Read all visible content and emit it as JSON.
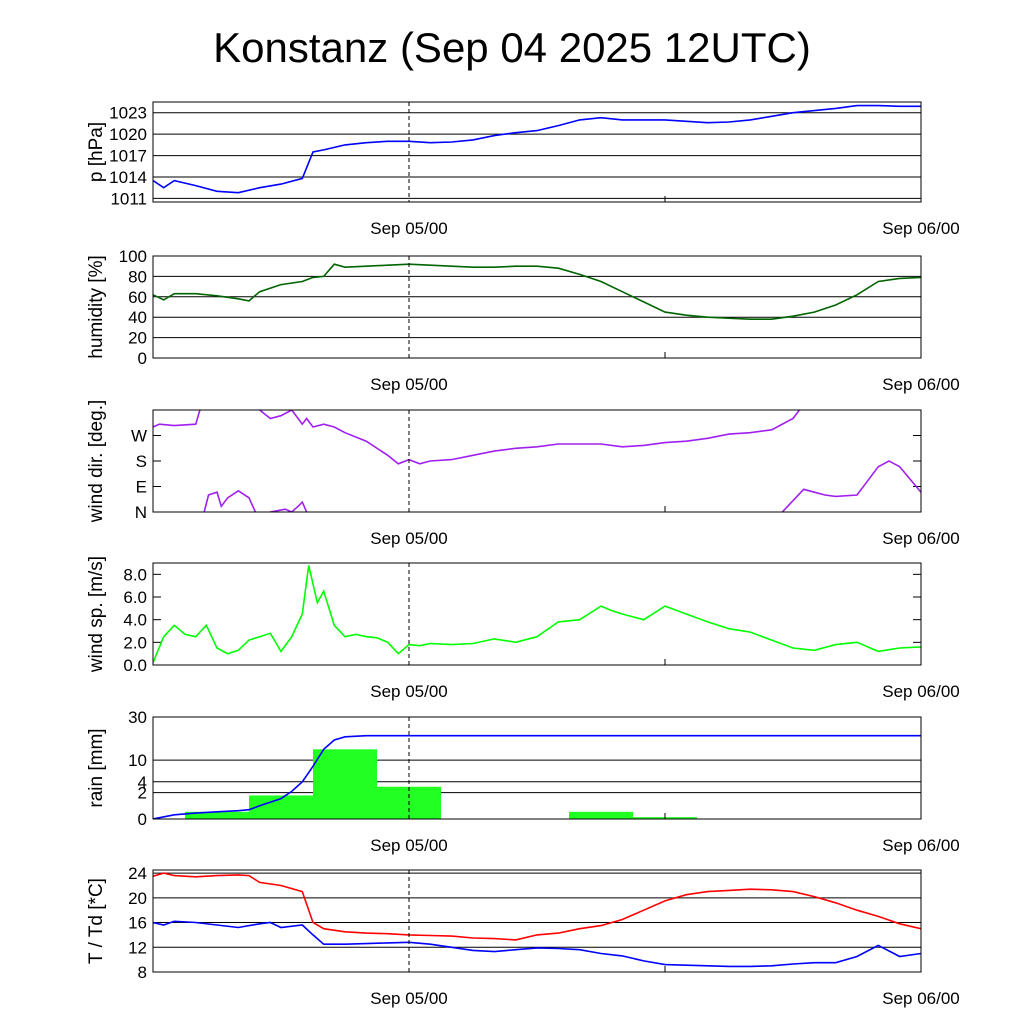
{
  "title": "Konstanz (Sep 04 2025 12UTC)",
  "x_ticks": [
    {
      "t": 12,
      "label": "Sep 05/00"
    },
    {
      "t": 36,
      "label": "Sep 06/00"
    }
  ],
  "x_minor_ticks": [
    24
  ],
  "colors": {
    "pressure": "#0000ff",
    "humidity": "#006400",
    "wind_dir": "#a020f0",
    "wind_speed": "#00ff00",
    "rain_sum": "#0000ff",
    "rain_bars": "#22ff22",
    "temperature": "#ff0000",
    "dewpoint": "#0000ff"
  },
  "chart_data": [
    {
      "type": "line",
      "name": "pressure",
      "ylabel": "p [hPa]",
      "xlim": [
        0,
        36
      ],
      "ylim": [
        1010.5,
        1024.5
      ],
      "yticks": [
        1011,
        1014,
        1017,
        1020,
        1023
      ],
      "grid": true,
      "series": [
        {
          "color": "#0000ff",
          "x": [
            0,
            0.5,
            1,
            2,
            3,
            4,
            5,
            6,
            7,
            7.5,
            8,
            9,
            10,
            11,
            12,
            13,
            14,
            15,
            16,
            17,
            18,
            19,
            20,
            21,
            22,
            23,
            24,
            25,
            26,
            27,
            28,
            29,
            30,
            31,
            32,
            33,
            34,
            35,
            36
          ],
          "y": [
            1013.5,
            1012.5,
            1013.5,
            1012.8,
            1012.0,
            1011.8,
            1012.5,
            1013.0,
            1013.8,
            1017.5,
            1017.8,
            1018.5,
            1018.8,
            1019.0,
            1019.0,
            1018.8,
            1018.9,
            1019.2,
            1019.8,
            1020.2,
            1020.5,
            1021.2,
            1022.0,
            1022.3,
            1022.0,
            1022.0,
            1022.0,
            1021.8,
            1021.6,
            1021.7,
            1022.0,
            1022.5,
            1023.0,
            1023.3,
            1023.6,
            1024.0,
            1024.0,
            1023.9,
            1023.9
          ]
        }
      ]
    },
    {
      "type": "line",
      "name": "humidity",
      "ylabel": "humidity [%]",
      "xlim": [
        0,
        36
      ],
      "ylim": [
        0,
        100
      ],
      "yticks": [
        0,
        20,
        40,
        60,
        80,
        100
      ],
      "grid": true,
      "series": [
        {
          "color": "#006400",
          "x": [
            0,
            0.5,
            1,
            2,
            3,
            4,
            4.5,
            5,
            6,
            7,
            7.5,
            8,
            8.5,
            9,
            10,
            11,
            12,
            13,
            14,
            15,
            16,
            17,
            18,
            19,
            20,
            21,
            22,
            23,
            24,
            25,
            26,
            27,
            28,
            29,
            30,
            31,
            32,
            33,
            34,
            35,
            36
          ],
          "y": [
            62,
            57,
            63,
            63,
            61,
            58,
            56,
            65,
            72,
            75,
            79,
            80,
            92,
            89,
            90,
            91,
            92,
            91,
            90,
            89,
            89,
            90,
            90,
            88,
            82,
            75,
            65,
            55,
            45,
            42,
            40,
            39,
            38,
            38,
            41,
            45,
            52,
            62,
            75,
            78,
            79
          ]
        }
      ]
    },
    {
      "type": "line",
      "name": "wind direction",
      "ylabel": "wind dir. [deg.]",
      "xlim": [
        0,
        36
      ],
      "ylim": [
        0,
        360
      ],
      "yticks": [
        0,
        90,
        180,
        270
      ],
      "yticklabels": [
        "N",
        "E",
        "S",
        "W"
      ],
      "grid": false,
      "series": [
        {
          "color": "#a020f0",
          "segments": [
            {
              "x": [
                0,
                0.3,
                1,
                2,
                2.2
              ],
              "y": [
                300,
                310,
                305,
                310,
                360
              ]
            },
            {
              "x": [
                5,
                5.5,
                6,
                6.5,
                6.8,
                7,
                7.2,
                7.5,
                8,
                8.5,
                9,
                10,
                11,
                11.5,
                12,
                12.5,
                13,
                14,
                15,
                16,
                17,
                18,
                19,
                20,
                21,
                22,
                23,
                24,
                25,
                26,
                27,
                28,
                29,
                30,
                30.3
              ],
              "y": [
                360,
                330,
                340,
                360,
                330,
                310,
                330,
                300,
                310,
                300,
                280,
                250,
                200,
                170,
                185,
                170,
                180,
                185,
                200,
                215,
                225,
                230,
                240,
                240,
                240,
                230,
                235,
                245,
                250,
                260,
                275,
                280,
                290,
                330,
                360
              ]
            }
          ]
        },
        {
          "color": "#a020f0",
          "segments": [
            {
              "x": [
                2.4,
                2.6,
                3,
                3.2,
                3.5,
                4,
                4.5,
                4.8
              ],
              "y": [
                0,
                60,
                70,
                20,
                50,
                75,
                50,
                0
              ]
            },
            {
              "x": [
                5.5,
                6.2,
                6.5,
                6.8,
                7,
                7.2
              ],
              "y": [
                0,
                10,
                0,
                20,
                35,
                0
              ]
            },
            {
              "x": [
                29.5,
                30.5,
                31,
                31.5,
                32,
                33,
                34,
                34.5,
                35,
                36
              ],
              "y": [
                0,
                80,
                70,
                60,
                55,
                60,
                160,
                180,
                160,
                70
              ]
            }
          ]
        }
      ]
    },
    {
      "type": "line",
      "name": "wind speed",
      "ylabel": "wind sp. [m/s]",
      "xlim": [
        0,
        36
      ],
      "ylim": [
        0,
        9
      ],
      "yticks": [
        0,
        2,
        4,
        6,
        8
      ],
      "yticklabels": [
        "0.0",
        "2.0",
        "4.0",
        "6.0",
        "8.0"
      ],
      "grid": false,
      "series": [
        {
          "color": "#00ff00",
          "x": [
            0,
            0.5,
            1,
            1.5,
            2,
            2.5,
            3,
            3.5,
            4,
            4.5,
            5,
            5.5,
            6,
            6.5,
            7,
            7.3,
            7.7,
            8,
            8.5,
            9,
            9.5,
            10,
            10.5,
            11,
            11.5,
            12,
            12.5,
            13,
            14,
            15,
            16,
            17,
            18,
            19,
            20,
            21,
            21.5,
            22,
            23,
            24,
            25,
            26,
            27,
            28,
            29,
            30,
            31,
            32,
            33,
            34,
            35,
            36
          ],
          "y": [
            0.2,
            2.5,
            3.5,
            2.7,
            2.5,
            3.5,
            1.5,
            1.0,
            1.3,
            2.2,
            2.5,
            2.8,
            1.2,
            2.5,
            4.5,
            8.8,
            5.5,
            6.5,
            3.5,
            2.5,
            2.7,
            2.5,
            2.4,
            2.0,
            1.0,
            1.8,
            1.7,
            1.9,
            1.8,
            1.9,
            2.3,
            2.0,
            2.5,
            3.8,
            4.0,
            5.2,
            4.8,
            4.5,
            4.0,
            5.2,
            4.5,
            3.8,
            3.2,
            2.9,
            2.2,
            1.5,
            1.3,
            1.8,
            2.0,
            1.2,
            1.5,
            1.6
          ]
        }
      ]
    },
    {
      "type": "bar+line",
      "name": "rain",
      "ylabel": "rain [mm]",
      "xlim": [
        0,
        36
      ],
      "yscale": "sqrt",
      "ylim": [
        0,
        30
      ],
      "yticks": [
        0,
        2,
        4,
        10,
        30
      ],
      "grid": true,
      "bars": {
        "color": "#22ff22",
        "x0": [
          1.5,
          4.5,
          7.5,
          10.5,
          19.5,
          22.5
        ],
        "x1": [
          4.5,
          7.5,
          10.5,
          13.5,
          22.5,
          25.5
        ],
        "values": [
          0.15,
          1.6,
          14.0,
          3.0,
          0.15,
          0.01
        ]
      },
      "series": [
        {
          "color": "#0000ff",
          "name": "rain sum",
          "x": [
            0,
            1,
            2,
            3,
            4,
            4.5,
            5,
            6,
            6.5,
            7,
            7.5,
            8,
            8.5,
            9,
            10,
            11,
            12,
            36
          ],
          "y": [
            0,
            0.05,
            0.1,
            0.15,
            0.2,
            0.25,
            0.5,
            1.2,
            2.2,
            4,
            8,
            14,
            18,
            19.5,
            20,
            20,
            20,
            20
          ]
        }
      ]
    },
    {
      "type": "line",
      "name": "temperature / dewpoint",
      "ylabel": "T / Td [*C]",
      "xlim": [
        0,
        36
      ],
      "ylim": [
        8,
        24.5
      ],
      "yticks": [
        8,
        12,
        16,
        20,
        24
      ],
      "grid": true,
      "series": [
        {
          "color": "#ff0000",
          "name": "T",
          "x": [
            0,
            0.5,
            1,
            2,
            3,
            4,
            4.5,
            5,
            6,
            7,
            7.5,
            8,
            9,
            10,
            11,
            12,
            13,
            14,
            15,
            16,
            17,
            18,
            19,
            20,
            21,
            22,
            23,
            24,
            25,
            26,
            27,
            28,
            29,
            30,
            31,
            32,
            33,
            34,
            35,
            36
          ],
          "y": [
            23.5,
            24.0,
            23.6,
            23.4,
            23.6,
            23.7,
            23.6,
            22.5,
            22.0,
            21.0,
            16.0,
            15.0,
            14.5,
            14.3,
            14.2,
            14.0,
            13.9,
            13.8,
            13.5,
            13.4,
            13.2,
            14.0,
            14.3,
            15.0,
            15.5,
            16.5,
            18.0,
            19.5,
            20.5,
            21.0,
            21.2,
            21.4,
            21.3,
            21.0,
            20.2,
            19.2,
            18.0,
            17.0,
            15.8,
            15.0
          ]
        },
        {
          "color": "#0000ff",
          "name": "Td",
          "x": [
            0,
            0.5,
            1,
            2,
            3,
            4,
            5,
            5.5,
            6,
            7,
            7.5,
            8,
            9,
            10,
            11,
            12,
            13,
            14,
            15,
            16,
            17,
            18,
            19,
            20,
            21,
            22,
            23,
            24,
            25,
            26,
            27,
            28,
            29,
            30,
            31,
            32,
            33,
            34,
            35,
            36
          ],
          "y": [
            16,
            15.6,
            16.2,
            16.0,
            15.6,
            15.2,
            15.8,
            16.0,
            15.2,
            15.6,
            14.0,
            12.5,
            12.5,
            12.6,
            12.7,
            12.8,
            12.5,
            12.0,
            11.5,
            11.3,
            11.6,
            11.9,
            11.8,
            11.6,
            11.0,
            10.6,
            9.8,
            9.2,
            9.1,
            9.0,
            8.9,
            8.9,
            9.0,
            9.3,
            9.5,
            9.5,
            10.5,
            12.3,
            10.5,
            11.0
          ]
        }
      ]
    }
  ]
}
